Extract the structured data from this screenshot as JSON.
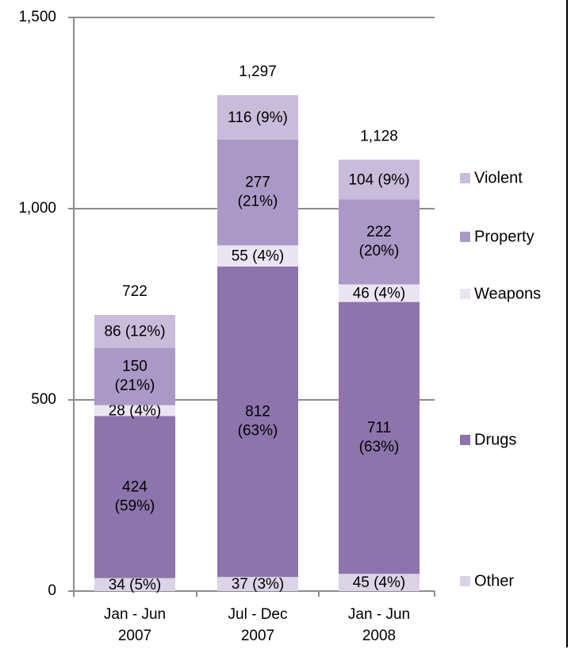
{
  "chart_data": {
    "type": "bar",
    "stacked": true,
    "categories": [
      [
        "Jan - Jun",
        "2007"
      ],
      [
        "Jul - Dec",
        "2007"
      ],
      [
        "Jan - Jun",
        "2008"
      ]
    ],
    "series": [
      {
        "name": "Other",
        "color": "#ddd3e7",
        "values": [
          34,
          37,
          45
        ],
        "labels": [
          "34 (5%)",
          "37 (3%)",
          "45 (4%)"
        ]
      },
      {
        "name": "Drugs",
        "color": "#8d74ac",
        "values": [
          424,
          812,
          711
        ],
        "labels": [
          [
            "424",
            "(59%)"
          ],
          [
            "812",
            "(63%)"
          ],
          [
            "711",
            "(63%)"
          ]
        ]
      },
      {
        "name": "Weapons",
        "color": "#ebe4f2",
        "values": [
          28,
          55,
          46
        ],
        "labels": [
          "28 (4%)",
          "55 (4%)",
          "46 (4%)"
        ]
      },
      {
        "name": "Property",
        "color": "#aa99c6",
        "values": [
          150,
          277,
          222
        ],
        "labels": [
          [
            "150",
            "(21%)"
          ],
          [
            "277",
            "(21%)"
          ],
          [
            "222",
            "(20%)"
          ]
        ]
      },
      {
        "name": "Violent",
        "color": "#c9bbda",
        "values": [
          86,
          116,
          104
        ],
        "labels": [
          "86 (12%)",
          "116 (9%)",
          "104 (9%)"
        ]
      }
    ],
    "totals": [
      722,
      1297,
      1128
    ],
    "total_labels": [
      "722",
      "1,297",
      "1,128"
    ],
    "ylim": [
      0,
      1500
    ],
    "yticks": [
      0,
      500,
      1000,
      1500
    ],
    "ytick_labels": [
      "0",
      "500",
      "1,000",
      "1,500"
    ],
    "grid": true,
    "legend_position": "right",
    "title": "",
    "xlabel": "",
    "ylabel": ""
  }
}
